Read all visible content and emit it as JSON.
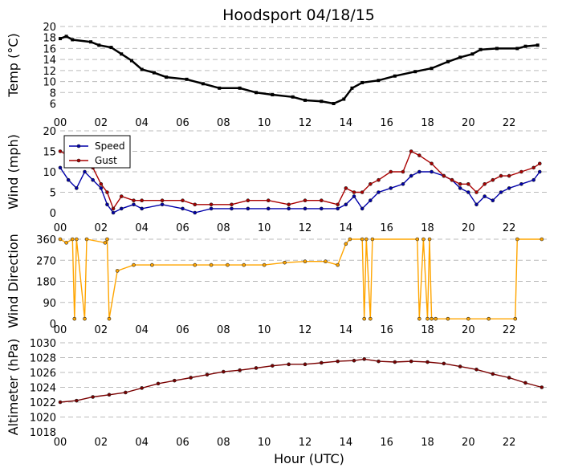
{
  "title": "Hoodsport 04/18/15",
  "xlabel": "Hour (UTC)",
  "x_tick_labels": [
    "00",
    "02",
    "04",
    "06",
    "08",
    "10",
    "12",
    "14",
    "16",
    "18",
    "20",
    "22"
  ],
  "colors": {
    "temp": "#000000",
    "speed": "#0000aa",
    "gust": "#aa0000",
    "direction": "#ffa500",
    "altimeter": "#7a0000"
  },
  "chart_data": [
    {
      "type": "line",
      "name": "temperature",
      "ylabel": "Temp (°C)",
      "ylim": [
        6,
        20
      ],
      "yticks": [
        6,
        8,
        10,
        12,
        14,
        16,
        18,
        20
      ],
      "xlim": [
        0,
        24
      ],
      "series": [
        {
          "points": [
            [
              0,
              17.8
            ],
            [
              0.3,
              18.2
            ],
            [
              0.6,
              17.6
            ],
            [
              1.5,
              17.2
            ],
            [
              1.9,
              16.6
            ],
            [
              2.5,
              16.2
            ],
            [
              3.0,
              15.0
            ],
            [
              3.5,
              13.8
            ],
            [
              4.0,
              12.2
            ],
            [
              4.6,
              11.6
            ],
            [
              5.2,
              10.8
            ],
            [
              6.2,
              10.4
            ],
            [
              7.0,
              9.6
            ],
            [
              7.8,
              8.8
            ],
            [
              8.8,
              8.8
            ],
            [
              9.6,
              8.0
            ],
            [
              10.4,
              7.6
            ],
            [
              11.4,
              7.2
            ],
            [
              12.0,
              6.6
            ],
            [
              12.8,
              6.4
            ],
            [
              13.4,
              6.0
            ],
            [
              13.9,
              6.8
            ],
            [
              14.3,
              8.8
            ],
            [
              14.8,
              9.8
            ],
            [
              15.6,
              10.2
            ],
            [
              16.4,
              11.0
            ],
            [
              17.4,
              11.8
            ],
            [
              18.2,
              12.4
            ],
            [
              19.0,
              13.6
            ],
            [
              19.6,
              14.4
            ],
            [
              20.2,
              15.0
            ],
            [
              20.6,
              15.8
            ],
            [
              21.4,
              16.0
            ],
            [
              22.4,
              16.0
            ],
            [
              22.8,
              16.4
            ],
            [
              23.4,
              16.6
            ]
          ]
        }
      ]
    },
    {
      "type": "line",
      "name": "wind",
      "ylabel": "Wind (mph)",
      "ylim": [
        0,
        20
      ],
      "yticks": [
        0,
        5,
        10,
        15,
        20
      ],
      "xlim": [
        0,
        24
      ],
      "legend": "top-left",
      "series": [
        {
          "name": "Speed",
          "points": [
            [
              0,
              11
            ],
            [
              0.4,
              8
            ],
            [
              0.8,
              6
            ],
            [
              1.2,
              10
            ],
            [
              1.6,
              8
            ],
            [
              2.0,
              6
            ],
            [
              2.3,
              2
            ],
            [
              2.6,
              0
            ],
            [
              3.0,
              1
            ],
            [
              3.6,
              2
            ],
            [
              4.0,
              1
            ],
            [
              5.0,
              2
            ],
            [
              6.0,
              1
            ],
            [
              6.6,
              0
            ],
            [
              7.4,
              1
            ],
            [
              8.4,
              1
            ],
            [
              9.2,
              1
            ],
            [
              10.2,
              1
            ],
            [
              11.2,
              1
            ],
            [
              12.0,
              1
            ],
            [
              12.8,
              1
            ],
            [
              13.6,
              1
            ],
            [
              14.0,
              2
            ],
            [
              14.4,
              4
            ],
            [
              14.8,
              1
            ],
            [
              15.2,
              3
            ],
            [
              15.6,
              5
            ],
            [
              16.2,
              6
            ],
            [
              16.8,
              7
            ],
            [
              17.2,
              9
            ],
            [
              17.6,
              10
            ],
            [
              18.2,
              10
            ],
            [
              18.8,
              9
            ],
            [
              19.2,
              8
            ],
            [
              19.6,
              6
            ],
            [
              20.0,
              5
            ],
            [
              20.4,
              2
            ],
            [
              20.8,
              4
            ],
            [
              21.2,
              3
            ],
            [
              21.6,
              5
            ],
            [
              22.0,
              6
            ],
            [
              22.6,
              7
            ],
            [
              23.2,
              8
            ],
            [
              23.5,
              10
            ]
          ]
        },
        {
          "name": "Gust",
          "points": [
            [
              0,
              15
            ],
            [
              0.4,
              14
            ],
            [
              0.8,
              12
            ],
            [
              1.2,
              12
            ],
            [
              1.6,
              11
            ],
            [
              2.0,
              7
            ],
            [
              2.3,
              5
            ],
            [
              2.6,
              1
            ],
            [
              3.0,
              4
            ],
            [
              3.6,
              3
            ],
            [
              4.0,
              3
            ],
            [
              5.0,
              3
            ],
            [
              6.0,
              3
            ],
            [
              6.6,
              2
            ],
            [
              7.4,
              2
            ],
            [
              8.4,
              2
            ],
            [
              9.2,
              3
            ],
            [
              10.2,
              3
            ],
            [
              11.2,
              2
            ],
            [
              12.0,
              3
            ],
            [
              12.8,
              3
            ],
            [
              13.6,
              2
            ],
            [
              14.0,
              6
            ],
            [
              14.4,
              5
            ],
            [
              14.8,
              5
            ],
            [
              15.2,
              7
            ],
            [
              15.6,
              8
            ],
            [
              16.2,
              10
            ],
            [
              16.8,
              10
            ],
            [
              17.2,
              15
            ],
            [
              17.6,
              14
            ],
            [
              18.2,
              12
            ],
            [
              18.8,
              9
            ],
            [
              19.2,
              8
            ],
            [
              19.6,
              7
            ],
            [
              20.0,
              7
            ],
            [
              20.4,
              5
            ],
            [
              20.8,
              7
            ],
            [
              21.2,
              8
            ],
            [
              21.6,
              9
            ],
            [
              22.0,
              9
            ],
            [
              22.6,
              10
            ],
            [
              23.2,
              11
            ],
            [
              23.5,
              12
            ]
          ]
        }
      ]
    },
    {
      "type": "line",
      "name": "direction",
      "ylabel": "Wind Direction",
      "ylim": [
        0,
        360
      ],
      "yticks": [
        0,
        90,
        180,
        270,
        360
      ],
      "xlim": [
        0,
        24
      ],
      "series": [
        {
          "points": [
            [
              0,
              360
            ],
            [
              0.3,
              345
            ],
            [
              0.6,
              360
            ],
            [
              0.7,
              20
            ],
            [
              0.8,
              360
            ],
            [
              1.2,
              20
            ],
            [
              1.3,
              360
            ],
            [
              2.2,
              345
            ],
            [
              2.3,
              360
            ],
            [
              2.4,
              20
            ],
            [
              2.8,
              225
            ],
            [
              3.6,
              250
            ],
            [
              4.5,
              250
            ],
            [
              6.6,
              250
            ],
            [
              7.4,
              250
            ],
            [
              8.2,
              250
            ],
            [
              9.0,
              250
            ],
            [
              10.0,
              250
            ],
            [
              11.0,
              260
            ],
            [
              12.0,
              265
            ],
            [
              13.0,
              265
            ],
            [
              13.6,
              250
            ],
            [
              14.0,
              340
            ],
            [
              14.2,
              360
            ],
            [
              14.8,
              360
            ],
            [
              14.9,
              20
            ],
            [
              15.0,
              360
            ],
            [
              15.2,
              20
            ],
            [
              15.3,
              360
            ],
            [
              17.5,
              360
            ],
            [
              17.6,
              20
            ],
            [
              17.8,
              360
            ],
            [
              18.0,
              20
            ],
            [
              18.1,
              360
            ],
            [
              18.2,
              20
            ],
            [
              18.4,
              20
            ],
            [
              19.0,
              20
            ],
            [
              20.0,
              20
            ],
            [
              21.0,
              20
            ],
            [
              22.3,
              20
            ],
            [
              22.4,
              360
            ],
            [
              23.6,
              360
            ]
          ]
        }
      ]
    },
    {
      "type": "line",
      "name": "altimeter",
      "ylabel": "Altimeter (hPa)",
      "xlabel": "Hour (UTC)",
      "ylim": [
        1018,
        1030
      ],
      "yticks": [
        1018,
        1020,
        1022,
        1024,
        1026,
        1028,
        1030
      ],
      "xlim": [
        0,
        24
      ],
      "series": [
        {
          "points": [
            [
              0,
              1022
            ],
            [
              0.8,
              1022.2
            ],
            [
              1.6,
              1022.7
            ],
            [
              2.4,
              1023.0
            ],
            [
              3.2,
              1023.3
            ],
            [
              4.0,
              1023.9
            ],
            [
              4.8,
              1024.5
            ],
            [
              5.6,
              1024.9
            ],
            [
              6.4,
              1025.3
            ],
            [
              7.2,
              1025.7
            ],
            [
              8.0,
              1026.1
            ],
            [
              8.8,
              1026.3
            ],
            [
              9.6,
              1026.6
            ],
            [
              10.4,
              1026.9
            ],
            [
              11.2,
              1027.1
            ],
            [
              12.0,
              1027.1
            ],
            [
              12.8,
              1027.3
            ],
            [
              13.6,
              1027.5
            ],
            [
              14.4,
              1027.6
            ],
            [
              14.9,
              1027.8
            ],
            [
              15.6,
              1027.5
            ],
            [
              16.4,
              1027.4
            ],
            [
              17.2,
              1027.5
            ],
            [
              18.0,
              1027.4
            ],
            [
              18.8,
              1027.2
            ],
            [
              19.6,
              1026.8
            ],
            [
              20.4,
              1026.4
            ],
            [
              21.2,
              1025.8
            ],
            [
              22.0,
              1025.3
            ],
            [
              22.8,
              1024.6
            ],
            [
              23.6,
              1024.0
            ]
          ]
        }
      ]
    }
  ]
}
